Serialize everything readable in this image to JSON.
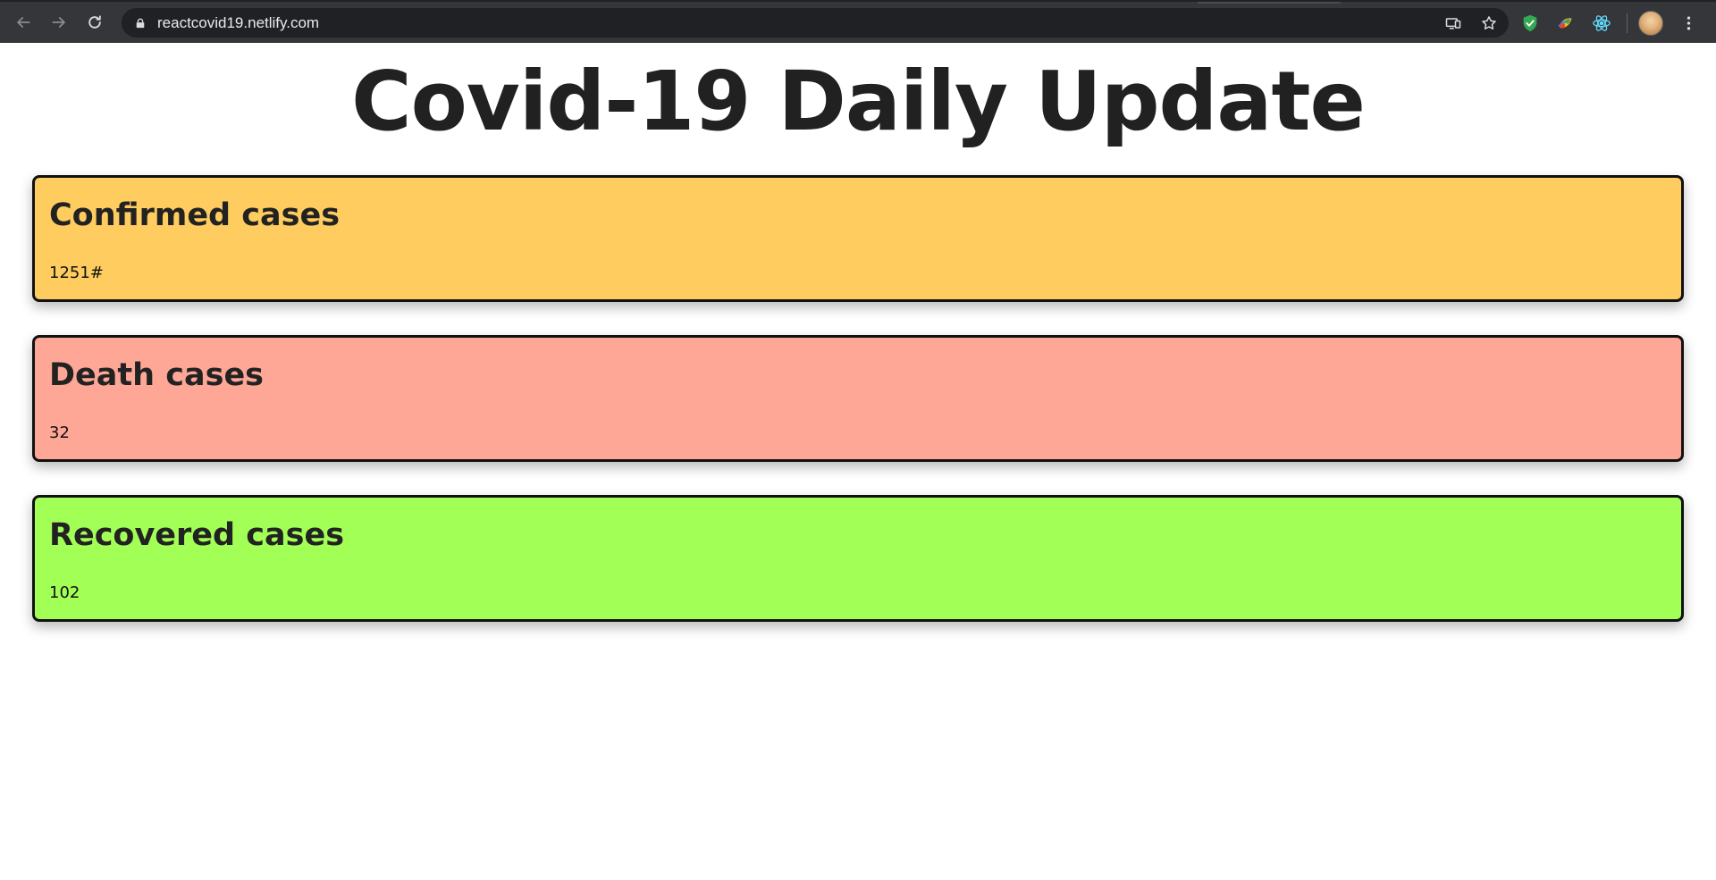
{
  "browser": {
    "url": "reactcovid19.netlify.com",
    "icons": {
      "back": "arrow-left-icon",
      "forward": "arrow-right-icon",
      "reload": "reload-icon",
      "lock": "lock-icon",
      "cast": "cast-icon",
      "bookmark": "star-icon",
      "ext1": "shield-check-icon",
      "ext2": "color-picker-icon",
      "ext3": "react-atom-icon",
      "menu": "kebab-menu-icon"
    }
  },
  "page": {
    "title": "Covid-19 Daily Update"
  },
  "cards": [
    {
      "title": "Confirmed cases",
      "value": "1251#",
      "color": "#fecc5f"
    },
    {
      "title": "Death cases",
      "value": "32",
      "color": "#ffa797"
    },
    {
      "title": "Recovered cases",
      "value": "102",
      "color": "#a2ff55"
    }
  ]
}
